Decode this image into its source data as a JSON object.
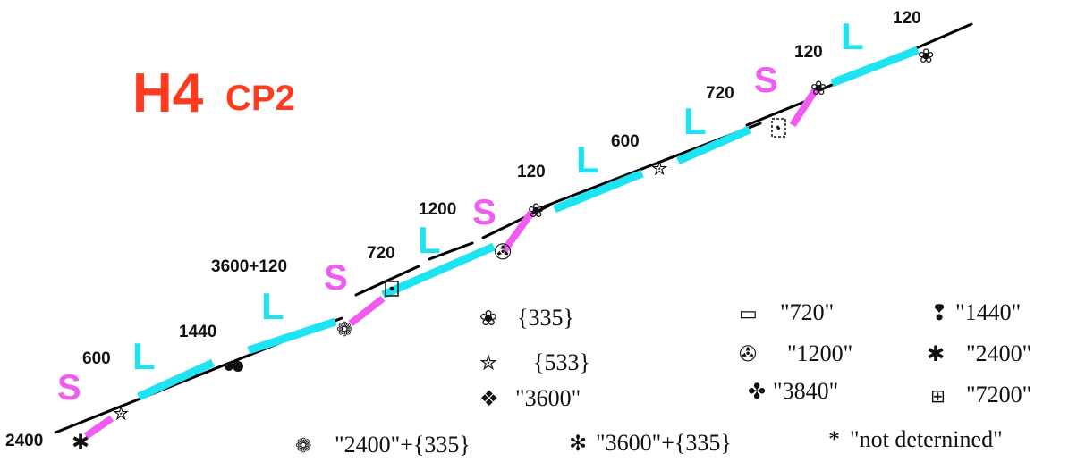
{
  "title": {
    "main": "H4",
    "sub": "CP2"
  },
  "colors": {
    "title": "#ff3b1f",
    "L": "#1ee3f0",
    "S": "#f05cf0",
    "line": "#000000"
  },
  "segment_labels": [
    "S",
    "L",
    "L",
    "S",
    "L",
    "S",
    "L",
    "L",
    "S",
    "L"
  ],
  "values": [
    "2400",
    "600",
    "1440",
    "3600+120",
    "720",
    "1200",
    "120",
    "600",
    "720",
    "120",
    "120"
  ],
  "legend": [
    {
      "symbol": "❀",
      "icon": "flower-icon",
      "text": "{335}"
    },
    {
      "symbol": "✮",
      "icon": "star-icon",
      "text": "{533}"
    },
    {
      "symbol": "❖",
      "icon": "diamond-icon",
      "text": "\"3600\""
    },
    {
      "symbol": "▭",
      "icon": "box-icon",
      "text": "\"720\""
    },
    {
      "symbol": "✇",
      "icon": "tri-circle-icon",
      "text": "\"1200\""
    },
    {
      "symbol": "✤",
      "icon": "quatrefoil-icon",
      "text": "\"3840\""
    },
    {
      "symbol": "❢",
      "icon": "drop-icon",
      "text": "\"1440\""
    },
    {
      "symbol": "✱",
      "icon": "asterisk-icon",
      "text": "\"2400\""
    },
    {
      "symbol": "⊞",
      "icon": "cross-box-icon",
      "text": "\"7200\""
    },
    {
      "symbol": "❁",
      "icon": "wheel-icon",
      "text": "\"2400\"+{335}"
    },
    {
      "symbol": "✻",
      "icon": "star-asterisk-icon",
      "text": "\"3600\"+{335}"
    },
    {
      "symbol": "*",
      "icon": "asterisk-plain-icon",
      "text": "\"not deternined\""
    }
  ]
}
